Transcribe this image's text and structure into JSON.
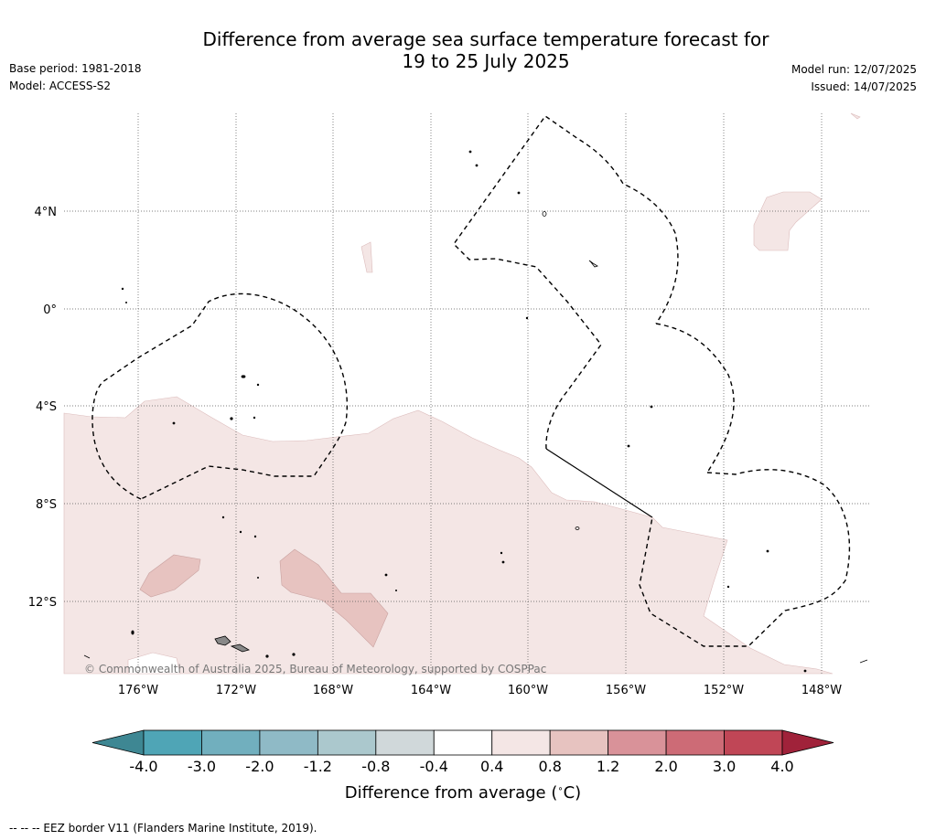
{
  "title_line1": "Difference from average sea surface temperature forecast for",
  "title_line2": "19 to 25 July 2025",
  "base_period": "Base period: 1981-2018",
  "model": "Model: ACCESS-S2",
  "model_run": "Model run: 12/07/2025",
  "issued": "Issued: 14/07/2025",
  "map": {
    "lat_labels": [
      "4°N",
      "0°",
      "4°S",
      "8°S",
      "12°S"
    ],
    "lon_labels": [
      "176°W",
      "172°W",
      "168°W",
      "164°W",
      "160°W",
      "156°W",
      "152°W",
      "148°W"
    ],
    "copyright": "© Commonwealth of Australia 2025, Bureau of Meteorology, supported by COSPPac"
  },
  "colorbar": {
    "ticks": [
      "-4.0",
      "-3.0",
      "-2.0",
      "-1.2",
      "-0.8",
      "-0.4",
      "0.4",
      "0.8",
      "1.2",
      "2.0",
      "3.0",
      "4.0"
    ],
    "colors": [
      "#3e8793",
      "#4fa5b6",
      "#71afbe",
      "#8fbac6",
      "#abc8cd",
      "#d0d8da",
      "#ffffff",
      "#f4e6e5",
      "#e7c3c0",
      "#d99299",
      "#cd6b76",
      "#c04656",
      "#a0223a"
    ],
    "title": "Difference from average (°C)"
  },
  "footer": "--  --  -- EEZ border V11 (Flanders Marine Institute, 2019)."
}
